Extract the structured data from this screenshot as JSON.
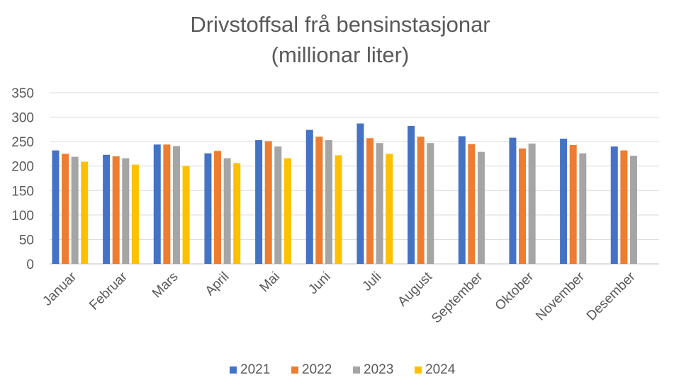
{
  "chart_data": {
    "type": "bar",
    "title_lines": [
      "Drivstoffsal frå bensinstasjonar",
      "(millionar liter)"
    ],
    "xlabel": "",
    "ylabel": "",
    "ylim": [
      0,
      350
    ],
    "yticks": [
      0,
      50,
      100,
      150,
      200,
      250,
      300,
      350
    ],
    "grid": true,
    "legend_position": "bottom",
    "categories": [
      "Januar",
      "Februar",
      "Mars",
      "April",
      "Mai",
      "Juni",
      "Juli",
      "August",
      "September",
      "Oktober",
      "November",
      "Desember"
    ],
    "series": [
      {
        "name": "2021",
        "color": "#4472c4",
        "values": [
          232,
          223,
          244,
          226,
          253,
          274,
          287,
          282,
          261,
          258,
          256,
          240
        ]
      },
      {
        "name": "2022",
        "color": "#ed7d31",
        "values": [
          225,
          220,
          244,
          231,
          251,
          260,
          257,
          260,
          245,
          236,
          243,
          232
        ]
      },
      {
        "name": "2023",
        "color": "#a5a5a5",
        "values": [
          219,
          216,
          241,
          216,
          240,
          253,
          247,
          247,
          229,
          246,
          226,
          221
        ]
      },
      {
        "name": "2024",
        "color": "#ffc000",
        "values": [
          209,
          203,
          200,
          206,
          216,
          222,
          225,
          null,
          null,
          null,
          null,
          null
        ]
      }
    ]
  }
}
